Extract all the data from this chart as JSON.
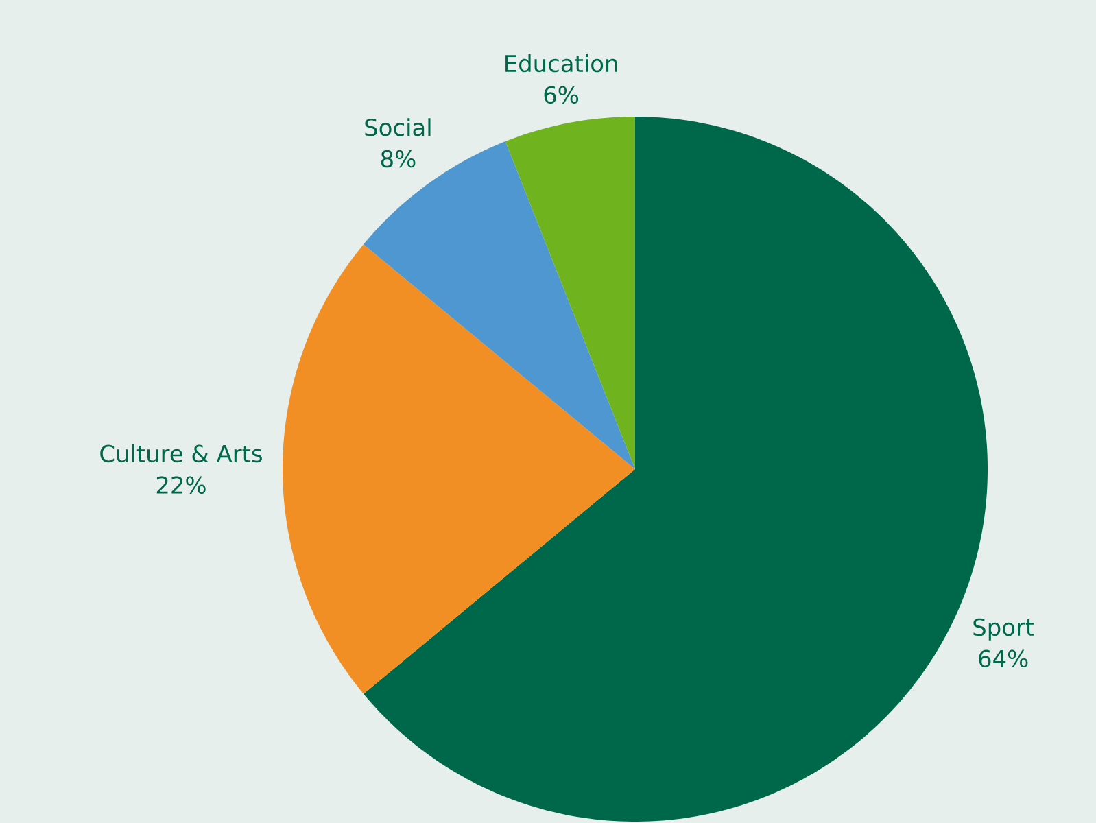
{
  "chart_data": {
    "type": "pie",
    "categories": [
      "Sport",
      "Culture & Arts",
      "Social",
      "Education"
    ],
    "values": [
      64,
      22,
      8,
      6
    ],
    "value_labels": [
      "64%",
      "22%",
      "8%",
      "6%"
    ],
    "colors": [
      "#00684a",
      "#f28f24",
      "#4e97d1",
      "#6fb31f"
    ]
  }
}
